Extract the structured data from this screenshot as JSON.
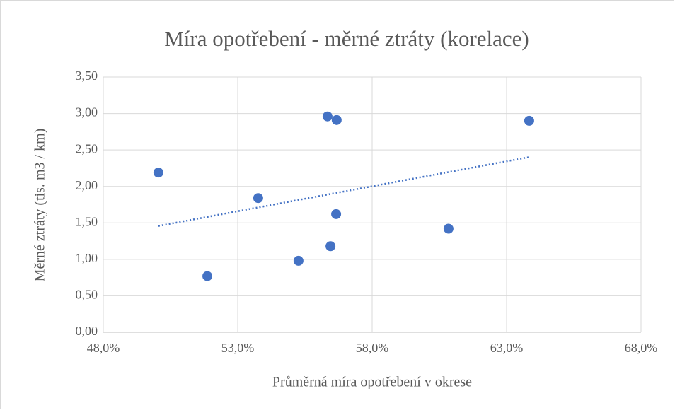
{
  "chart_data": {
    "type": "scatter",
    "title": "Míra opotřebení - měrné ztráty (korelace)",
    "x_label": "Průměrná míra opotřebení v okrese",
    "y_label": "Měrné ztráty (tis. m3 / km)",
    "series": [
      {
        "color": "#4472c4",
        "x": [
          50.05,
          51.87,
          53.76,
          55.26,
          56.34,
          56.68,
          56.45,
          56.66,
          60.84,
          63.84
        ],
        "values": [
          2.19,
          0.77,
          1.84,
          0.98,
          2.96,
          2.91,
          1.18,
          1.62,
          1.42,
          2.9
        ]
      }
    ],
    "trendline": true,
    "xlim": [
      48,
      68
    ],
    "xticks": [
      {
        "value": 48,
        "label": "48,0%"
      },
      {
        "value": 53,
        "label": "53,0%"
      },
      {
        "value": 58,
        "label": "58,0%"
      },
      {
        "value": 63,
        "label": "63,0%"
      },
      {
        "value": 68,
        "label": "68,0%"
      }
    ],
    "ylim": [
      0,
      3.5
    ],
    "yticks": [
      {
        "value": 0,
        "label": "0,00"
      },
      {
        "value": 0.5,
        "label": "0,50"
      },
      {
        "value": 1,
        "label": "1,00"
      },
      {
        "value": 1.5,
        "label": "1,50"
      },
      {
        "value": 2,
        "label": "2,00"
      },
      {
        "value": 2.5,
        "label": "2,50"
      },
      {
        "value": 3,
        "label": "3,00"
      },
      {
        "value": 3.5,
        "label": "3,50"
      }
    ],
    "grid": true
  }
}
